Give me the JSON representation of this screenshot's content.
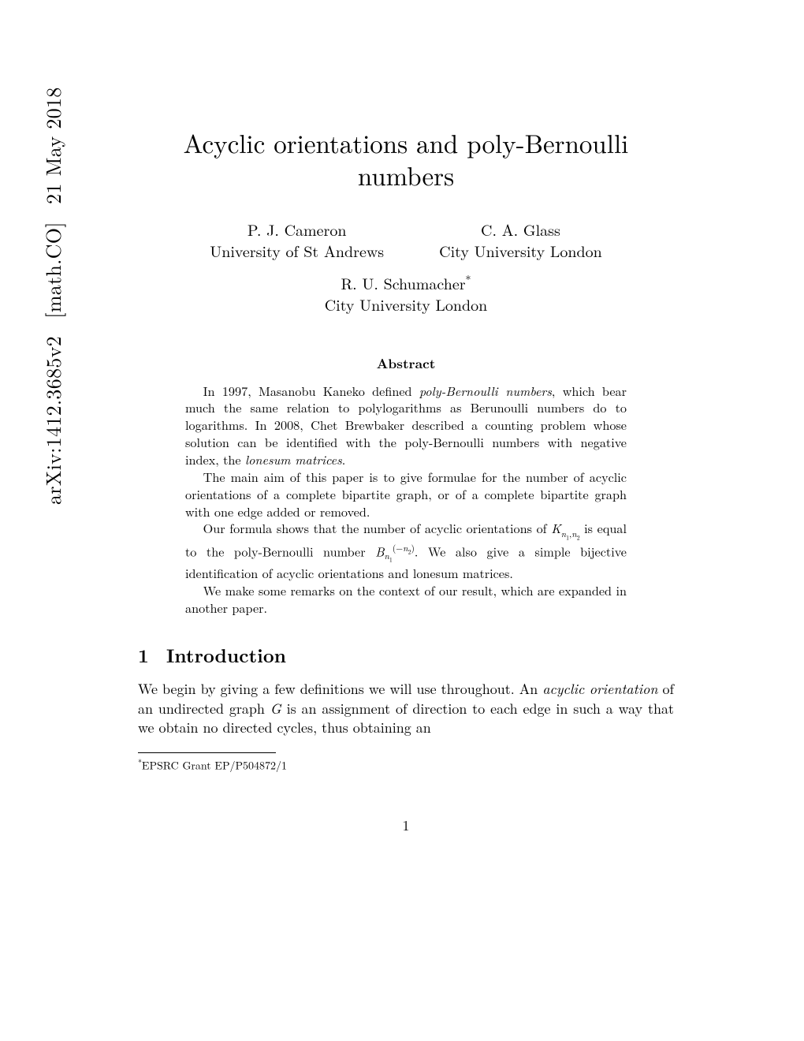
{
  "arxiv": {
    "id": "arXiv:1412.3685v2",
    "category": "[math.CO]",
    "date": "21 May 2018"
  },
  "title": "Acyclic orientations and poly-Bernoulli numbers",
  "authors": [
    {
      "name": "P. J. Cameron",
      "affiliation": "University of St Andrews"
    },
    {
      "name": "C. A. Glass",
      "affiliation": "City University London"
    },
    {
      "name": "R. U. Schumacher",
      "affiliation": "City University London",
      "note_marker": "*"
    }
  ],
  "abstract": {
    "heading": "Abstract",
    "paragraphs": [
      "In 1997, Masanobu Kaneko defined <i>poly-Bernoulli numbers</i>, which bear much the same relation to polylogarithms as Berunoulli numbers do to logarithms. In 2008, Chet Brewbaker described a counting problem whose solution can be identified with the poly-Bernoulli numbers with negative index, the <i>lonesum matrices</i>.",
      "The main aim of this paper is to give formulae for the number of acyclic orientations of a complete bipartite graph, or of a complete bipartite graph with one edge added or removed.",
      "Our formula shows that the number of acyclic orientations of <i>K</i><sub><i>n</i><sub>1</sub>,<i>n</i><sub>2</sub></sub> is equal to the poly-Bernoulli number <i>B</i><sub><i>n</i><sub>1</sub></sub><sup>(−<i>n</i><sub>2</sub>)</sup>. We also give a simple bijective identification of acyclic orientations and lonesum matrices.",
      "We make some remarks on the context of our result, which are expanded in another paper."
    ]
  },
  "section": {
    "number": "1",
    "title": "Introduction",
    "body": "We begin by giving a few definitions we will use throughout. An <i>acyclic orientation</i> of an undirected graph <i>G</i> is an assignment of direction to each edge in such a way that we obtain no directed cycles, thus obtaining an"
  },
  "footnote": {
    "marker": "*",
    "text": "EPSRC Grant EP/P504872/1"
  },
  "page_number": "1",
  "colors": {
    "text": "#000000",
    "background": "#ffffff"
  },
  "typography": {
    "title_fontsize": 33,
    "author_fontsize": 20,
    "abstract_heading_fontsize": 17,
    "abstract_body_fontsize": 16.2,
    "section_heading_fontsize": 24,
    "body_fontsize": 18,
    "footnote_fontsize": 14,
    "arxiv_fontsize": 26
  }
}
